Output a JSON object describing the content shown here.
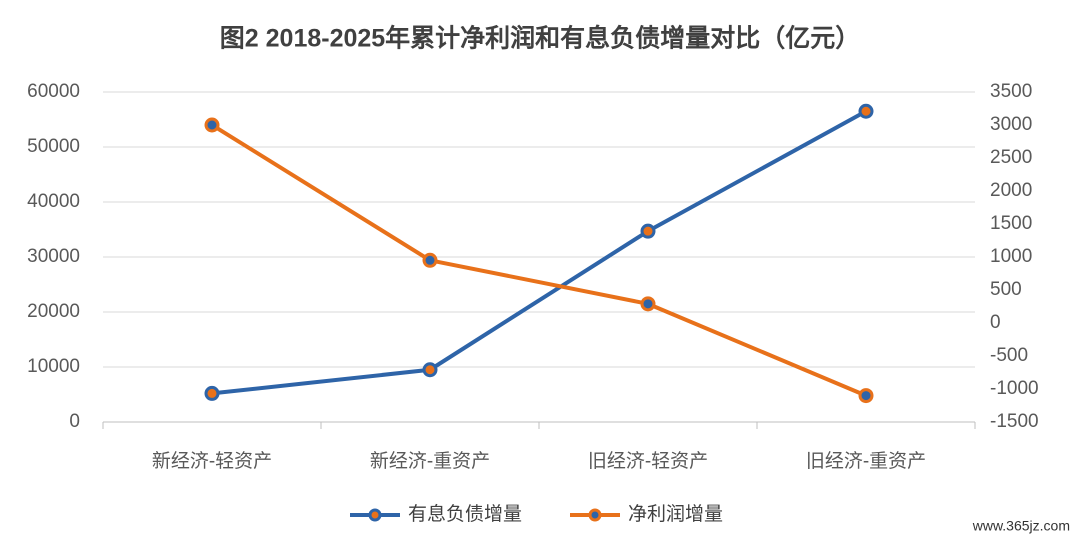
{
  "chart_data": {
    "type": "line",
    "title": "图2  2018-2025年累计净利润和有息负债增量对比（亿元）",
    "categories": [
      "新经济-轻资产",
      "新经济-重资产",
      "旧经济-轻资产",
      "旧经济-重资产"
    ],
    "series": [
      {
        "name": "有息负债增量",
        "color": "#2e64a8",
        "marker_fill": "#e8711a",
        "values": [
          5200,
          9500,
          34700,
          56500
        ]
      },
      {
        "name": "净利润增量",
        "color": "#e8711a",
        "marker_fill": "#2e64a8",
        "axis": "y2",
        "values": [
          3000,
          950,
          290,
          -1100
        ]
      }
    ],
    "ylim": [
      0,
      60000
    ],
    "yticks": [
      0,
      10000,
      20000,
      30000,
      40000,
      50000,
      60000
    ],
    "y2lim": [
      -1500,
      3500
    ],
    "y2ticks": [
      -1500,
      -1000,
      -500,
      0,
      500,
      1000,
      1500,
      2000,
      2500,
      3000,
      3500
    ],
    "grid": true,
    "legend": "bottom",
    "watermark": "www.365jz.com"
  }
}
